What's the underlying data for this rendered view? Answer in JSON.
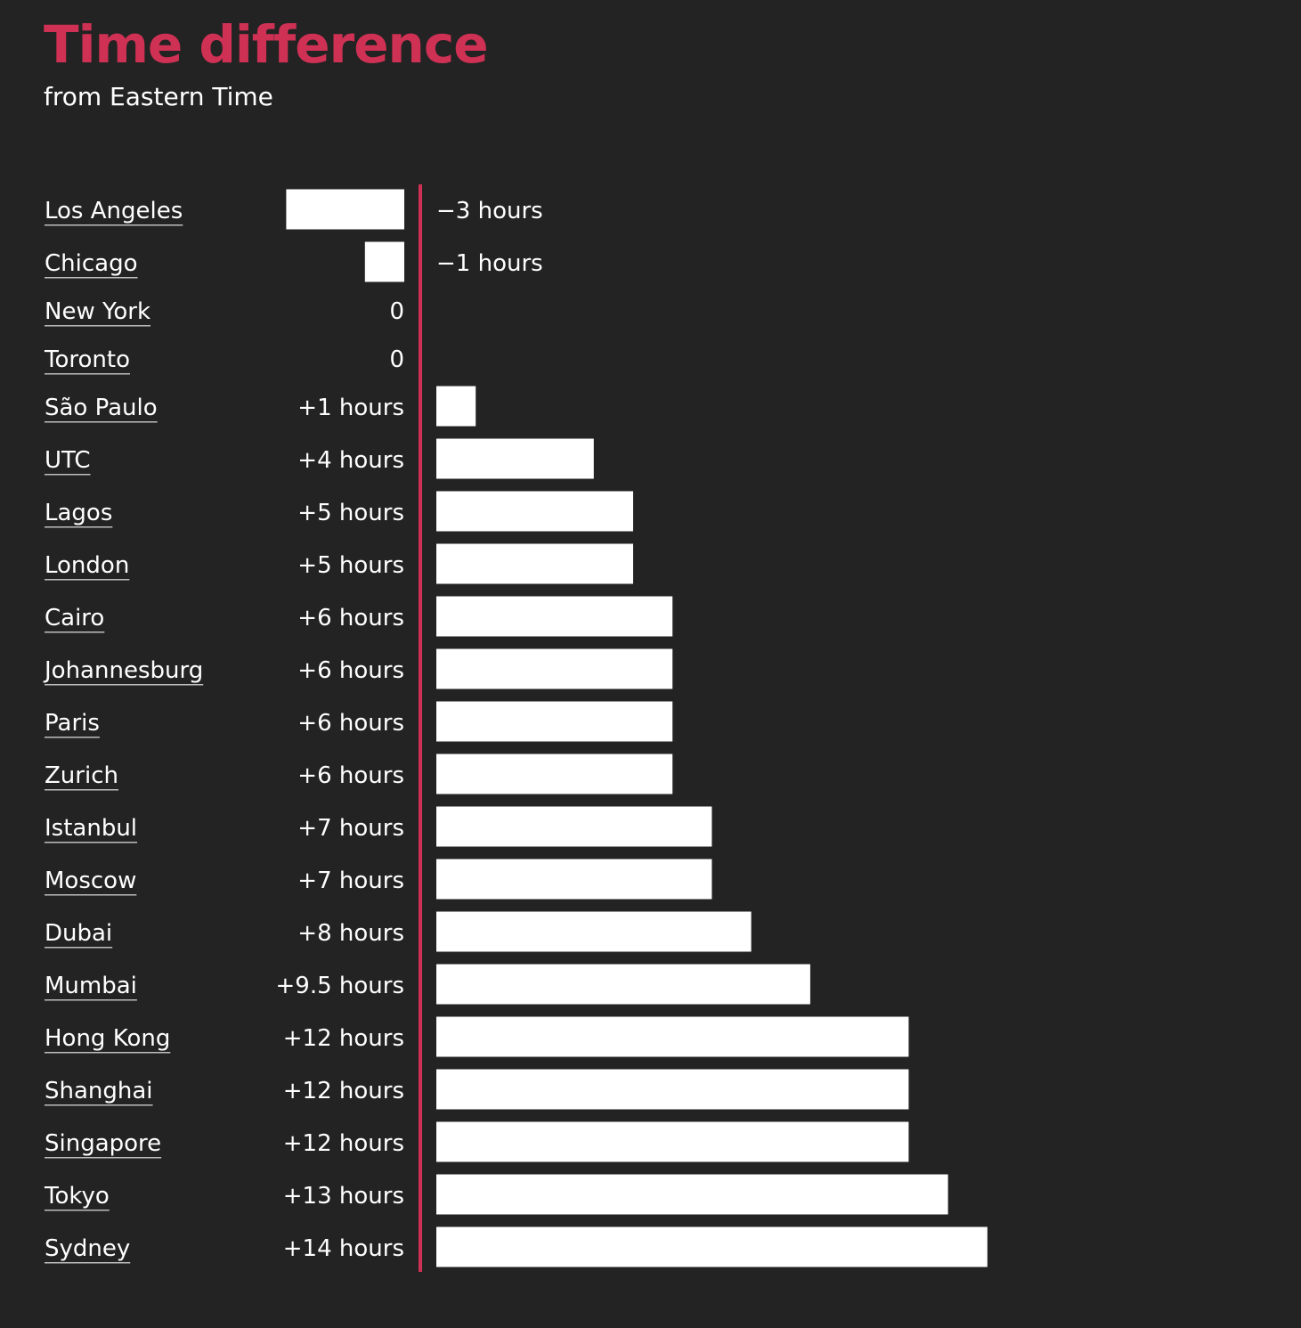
{
  "header": {
    "title": "Time difference",
    "subtitle": "from Eastern Time"
  },
  "colors": {
    "background": "#232323",
    "accent": "#cf3154",
    "bar": "#ffffff",
    "text": "#ffffff"
  },
  "chart_data": {
    "type": "bar",
    "orientation": "horizontal",
    "title": "Time difference",
    "subtitle": "from Eastern Time",
    "xlabel": "",
    "ylabel": "",
    "grid": false,
    "baseline": 0,
    "categories": [
      "Los Angeles",
      "Chicago",
      "New York",
      "Toronto",
      "São Paulo",
      "UTC",
      "Lagos",
      "London",
      "Cairo",
      "Johannesburg",
      "Paris",
      "Zurich",
      "Istanbul",
      "Moscow",
      "Dubai",
      "Mumbai",
      "Hong Kong",
      "Shanghai",
      "Singapore",
      "Tokyo",
      "Sydney"
    ],
    "values": [
      -3,
      -1,
      0,
      0,
      1,
      4,
      5,
      5,
      6,
      6,
      6,
      6,
      7,
      7,
      8,
      9.5,
      12,
      12,
      12,
      13,
      14
    ],
    "value_labels": [
      "−3 hours",
      "−1 hours",
      "0",
      "0",
      "+1 hours",
      "+4 hours",
      "+5 hours",
      "+5 hours",
      "+6 hours",
      "+6 hours",
      "+6 hours",
      "+6 hours",
      "+7 hours",
      "+7 hours",
      "+8 hours",
      "+9.5 hours",
      "+12 hours",
      "+12 hours",
      "+12 hours",
      "+13 hours",
      "+14 hours"
    ]
  }
}
